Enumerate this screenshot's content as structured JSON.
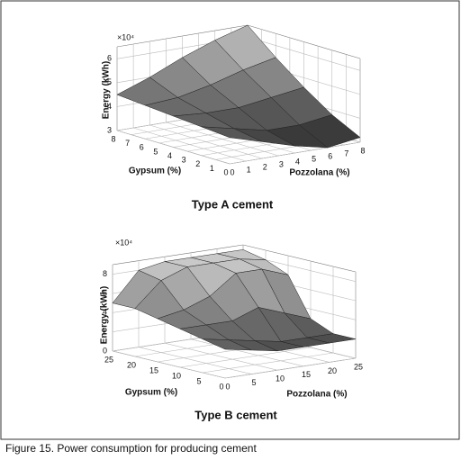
{
  "chart_data": [
    {
      "type": "surface",
      "title": "Type A cement",
      "xlabel": "Pozzolana (%)",
      "ylabel": "Gypsum (%)",
      "zlabel": "Energy (kWh)",
      "zexponent": "×10⁴",
      "x": [
        0,
        2,
        4,
        6,
        8
      ],
      "y": [
        0,
        2,
        4,
        6,
        8
      ],
      "z": [
        [
          4.1,
          3.7,
          3.3,
          3.0,
          3.2
        ],
        [
          4.2,
          3.9,
          3.6,
          3.6,
          3.8
        ],
        [
          4.3,
          4.2,
          4.2,
          4.4,
          4.6
        ],
        [
          4.4,
          4.5,
          4.8,
          5.2,
          5.5
        ],
        [
          4.5,
          5.0,
          5.6,
          6.1,
          6.5
        ]
      ],
      "xlim": [
        0,
        8
      ],
      "ylim": [
        0,
        8
      ],
      "zlim": [
        3,
        6.5
      ],
      "xticks": [
        0,
        1,
        2,
        3,
        4,
        5,
        6,
        7,
        8
      ],
      "yticks": [
        0,
        1,
        2,
        3,
        4,
        5,
        6,
        7,
        8
      ],
      "zticks": [
        3,
        4,
        5,
        6
      ],
      "grid": true
    },
    {
      "type": "surface",
      "title": "Type B cement",
      "xlabel": "Pozzolana (%)",
      "ylabel": "Gypsum (%)",
      "zlabel": "Energy (kWh)",
      "zexponent": "×10⁴",
      "x": [
        0,
        5,
        10,
        15,
        20,
        25
      ],
      "y": [
        0,
        5,
        10,
        15,
        20,
        25
      ],
      "z": [
        [
          3,
          2.5,
          2,
          2,
          2,
          2
        ],
        [
          3.5,
          3,
          2.5,
          2,
          2,
          2
        ],
        [
          4,
          4,
          4,
          5,
          4,
          3
        ],
        [
          4.5,
          5,
          6,
          8,
          8,
          7
        ],
        [
          5,
          7.5,
          8.5,
          8.5,
          8.5,
          8
        ],
        [
          5,
          8,
          8.5,
          8.5,
          8.5,
          8.5
        ]
      ],
      "xlim": [
        0,
        25
      ],
      "ylim": [
        0,
        25
      ],
      "zlim": [
        0,
        9
      ],
      "xticks": [
        0,
        5,
        10,
        15,
        20,
        25
      ],
      "yticks": [
        0,
        5,
        10,
        15,
        20,
        25
      ],
      "zticks": [
        0,
        2,
        4,
        6,
        8
      ],
      "grid": true
    }
  ],
  "caption": "Figure 15. Power consumption for producing cement"
}
